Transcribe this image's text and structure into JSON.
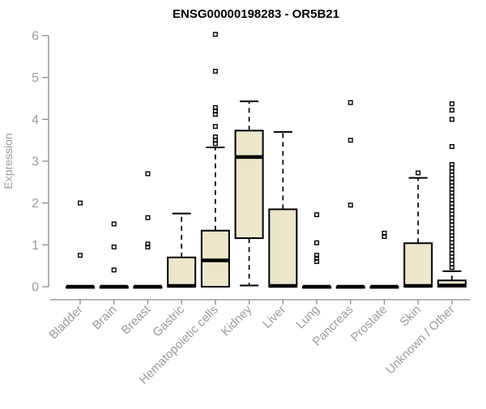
{
  "colors": {
    "box_fill": "#ece7cb",
    "box_stroke": "#000000",
    "median": "#000000",
    "axis_line": "#8c8c8c",
    "tick_text": "#9b9b9b",
    "title_color": "#000000",
    "outlier": "#000000",
    "background": "#ffffff"
  },
  "chart_data": {
    "type": "boxplot",
    "title": "ENSG00000198283 - OR5B21",
    "xlabel": "",
    "ylabel": "Expression",
    "ylim": [
      0,
      6
    ],
    "yticks": [
      0,
      1,
      2,
      3,
      4,
      5,
      6
    ],
    "grid": false,
    "legend": "none",
    "categories": [
      "Bladder",
      "Brain",
      "Breast",
      "Gastric",
      "Hematopoietic cells",
      "Kidney",
      "Liver",
      "Lung",
      "Pancreas",
      "Prostate",
      "Skin",
      "Unknown / Other"
    ],
    "series": [
      {
        "name": "Bladder",
        "q1": 0,
        "median": 0,
        "q3": 0,
        "whisker_low": 0,
        "whisker_high": 0,
        "outliers": [
          0.75,
          2.0
        ]
      },
      {
        "name": "Brain",
        "q1": 0,
        "median": 0,
        "q3": 0,
        "whisker_low": 0,
        "whisker_high": 0,
        "outliers": [
          0.4,
          0.95,
          1.5
        ]
      },
      {
        "name": "Breast",
        "q1": 0,
        "median": 0,
        "q3": 0,
        "whisker_low": 0,
        "whisker_high": 0,
        "outliers": [
          0.95,
          1.02,
          1.65,
          2.7
        ]
      },
      {
        "name": "Gastric",
        "q1": 0,
        "median": 0.02,
        "q3": 0.7,
        "whisker_low": 0,
        "whisker_high": 1.75,
        "outliers": []
      },
      {
        "name": "Hematopoietic cells",
        "q1": 0,
        "median": 0.63,
        "q3": 1.34,
        "whisker_low": 0,
        "whisker_high": 3.33,
        "outliers": [
          3.42,
          3.5,
          3.58,
          3.83,
          4.12,
          4.2,
          4.28,
          5.15,
          6.03
        ]
      },
      {
        "name": "Kidney",
        "q1": 1.16,
        "median": 3.1,
        "q3": 3.73,
        "whisker_low": 0.03,
        "whisker_high": 4.43,
        "outliers": []
      },
      {
        "name": "Liver",
        "q1": 0,
        "median": 0.02,
        "q3": 1.85,
        "whisker_low": 0,
        "whisker_high": 3.7,
        "outliers": []
      },
      {
        "name": "Lung",
        "q1": 0,
        "median": 0,
        "q3": 0,
        "whisker_low": 0,
        "whisker_high": 0,
        "outliers": [
          0.6,
          0.68,
          0.75,
          1.05,
          1.72
        ]
      },
      {
        "name": "Pancreas",
        "q1": 0,
        "median": 0,
        "q3": 0,
        "whisker_low": 0,
        "whisker_high": 0,
        "outliers": [
          1.95,
          3.5,
          4.4
        ]
      },
      {
        "name": "Prostate",
        "q1": 0,
        "median": 0,
        "q3": 0,
        "whisker_low": 0,
        "whisker_high": 0,
        "outliers": [
          1.2,
          1.28
        ]
      },
      {
        "name": "Skin",
        "q1": 0,
        "median": 0.02,
        "q3": 1.04,
        "whisker_low": 0,
        "whisker_high": 2.6,
        "outliers": [
          2.72
        ]
      },
      {
        "name": "Unknown / Other",
        "q1": 0,
        "median": 0.03,
        "q3": 0.15,
        "whisker_low": 0,
        "whisker_high": 0.37,
        "outliers": [
          4.37,
          4.22,
          4.0,
          3.35,
          2.92,
          2.84,
          2.75,
          2.67,
          2.58,
          2.5,
          2.41,
          2.33,
          2.24,
          2.16,
          2.07,
          1.99,
          1.9,
          1.82,
          1.73,
          1.65,
          1.56,
          1.48,
          1.39,
          1.31,
          1.22,
          1.14,
          1.05,
          0.97,
          0.88,
          0.8,
          0.71,
          0.63,
          0.54,
          0.46
        ]
      }
    ]
  }
}
